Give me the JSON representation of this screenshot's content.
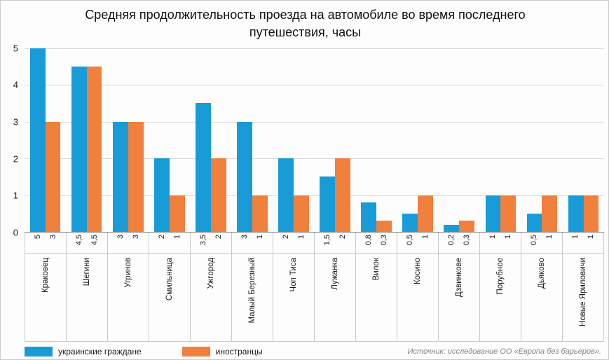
{
  "chart_data": {
    "type": "bar",
    "title": "Средняя продолжительность проезда на автомобиле во время последнего путешествия, часы",
    "title_lines": [
      "Средняя продолжительность проезда на автомобиле во время последнего",
      "путешествия, часы"
    ],
    "categories": [
      "Краковец",
      "Шегини",
      "Угринов",
      "Смильница",
      "Ужгород",
      "Малый Березный",
      "Чоп Тиса",
      "Лужанка",
      "Вилок",
      "Косино",
      "Дзвинкове",
      "Порубное",
      "Дьяково",
      "Новые Яриловичи"
    ],
    "series": [
      {
        "name": "украинские граждане",
        "color": "#189CD8",
        "values": [
          5,
          4.5,
          3,
          2,
          3.5,
          3,
          2,
          1.5,
          0.8,
          0.5,
          0.2,
          1,
          0.5,
          1
        ],
        "labels": [
          "5",
          "4,5",
          "3",
          "2",
          "3,5",
          "3",
          "2",
          "1,5",
          "0,8",
          "0,5",
          "0,2",
          "1",
          "0,5",
          "1"
        ]
      },
      {
        "name": "иностранцы",
        "color": "#F0803C",
        "values": [
          3,
          4.5,
          3,
          1,
          2,
          1,
          1,
          2,
          0.3,
          1,
          0.3,
          1,
          1,
          1
        ],
        "labels": [
          "3",
          "4,5",
          "3",
          "1",
          "2",
          "1",
          "1",
          "2",
          "0,3",
          "1",
          "0,3",
          "1",
          "1",
          "1"
        ]
      }
    ],
    "ylim": [
      0,
      5
    ],
    "yticks": [
      0,
      1,
      2,
      3,
      4,
      5
    ],
    "xlabel": "",
    "ylabel": "",
    "grid": "horizontal",
    "legend_position": "bottom-left"
  },
  "source_note": "Источник: исследование ОО «Европа без барьеров»."
}
